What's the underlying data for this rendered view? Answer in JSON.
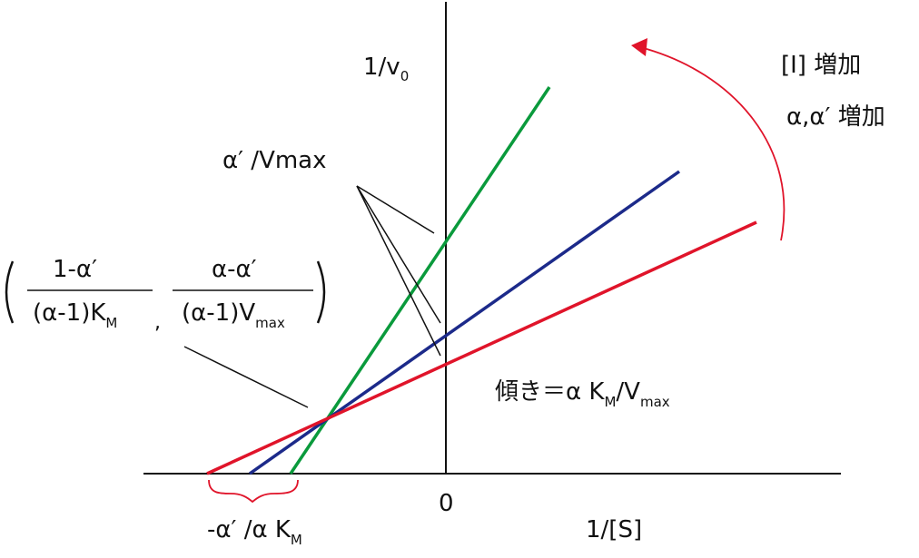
{
  "axes": {
    "y_label_main": "1/v",
    "y_label_sub": "0",
    "x_label": "1/[S]",
    "origin": "0"
  },
  "labels": {
    "increase_inhibitor": "[I] 増加",
    "increase_alpha": "α,α′ 増加",
    "intercept": "α′ /Vmax",
    "slope_prefix": "傾き＝α K",
    "slope_sub_m": "M",
    "slope_mid": "/V",
    "slope_sub_max": "max",
    "x_intercept_prefix": "-α′ /α K",
    "x_intercept_sub": "M"
  },
  "intersection": {
    "num1": "1-α′",
    "den1_prefix": "(α-1)K",
    "den1_sub": "M",
    "comma": ",",
    "num2": "α-α′",
    "den2_prefix": "(α-1)V",
    "den2_sub": "max"
  },
  "colors": {
    "green": "#0a9a3c",
    "blue": "#1c2a8a",
    "red": "#e0142a",
    "black": "#111111"
  }
}
